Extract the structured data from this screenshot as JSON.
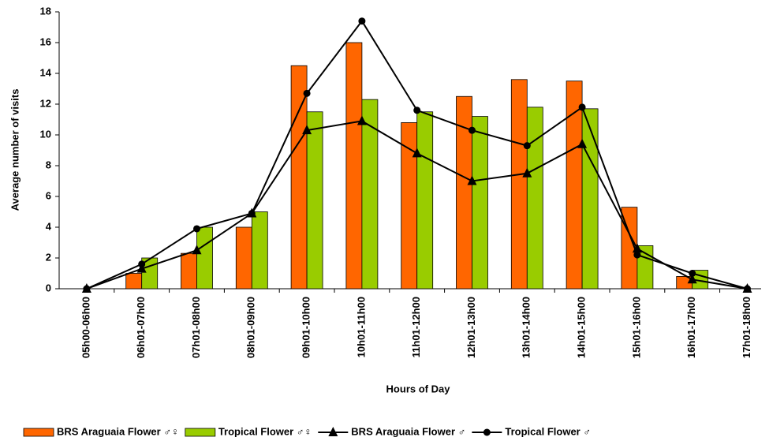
{
  "chart_data": {
    "type": "bar_line",
    "x_label": "Hours of Day",
    "y_label": "Average number of visits",
    "categories": [
      "05h00-06h00",
      "06h01-07h00",
      "07h01-08h00",
      "08h01-09h00",
      "09h01-10h00",
      "10h01-11h00",
      "11h01-12h00",
      "12h01-13h00",
      "13h01-14h00",
      "14h01-15h00",
      "15h01-16h00",
      "16h01-17h00",
      "17h01-18h00"
    ],
    "series": [
      {
        "name": "BRS Araguaia Flower ♂♀",
        "kind": "bar",
        "color": "#ff6600",
        "values": [
          0,
          1.0,
          2.3,
          4.0,
          14.5,
          16.0,
          10.8,
          12.5,
          13.6,
          13.5,
          5.3,
          0.8,
          0
        ]
      },
      {
        "name": "Tropical Flower ♂♀",
        "kind": "bar",
        "color": "#99cc00",
        "values": [
          0,
          2.0,
          4.0,
          5.0,
          11.5,
          12.3,
          11.5,
          11.2,
          11.8,
          11.7,
          2.8,
          1.2,
          0
        ]
      },
      {
        "name": "BRS Araguaia Flower ♂",
        "kind": "line",
        "marker": "triangle",
        "color": "#000000",
        "values": [
          0,
          1.3,
          2.5,
          4.9,
          10.3,
          10.9,
          8.8,
          7.0,
          7.5,
          9.4,
          2.6,
          0.6,
          0
        ]
      },
      {
        "name": "Tropical Flower ♂",
        "kind": "line",
        "marker": "circle",
        "color": "#000000",
        "values": [
          0,
          1.6,
          3.9,
          4.9,
          12.7,
          17.4,
          11.6,
          10.3,
          9.3,
          11.8,
          2.2,
          1.0,
          0
        ]
      }
    ],
    "ylim": [
      0,
      18
    ],
    "yticks": [
      0,
      2,
      4,
      6,
      8,
      10,
      12,
      14,
      16,
      18
    ],
    "legend": "bottom"
  }
}
